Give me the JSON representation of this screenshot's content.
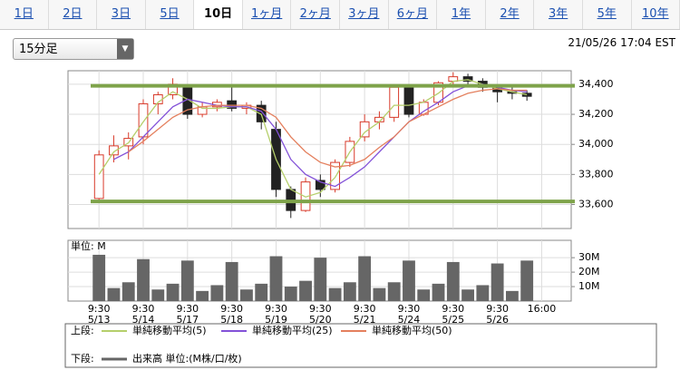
{
  "tabs": [
    "1日",
    "2日",
    "3日",
    "5日",
    "10日",
    "1ヶ月",
    "2ヶ月",
    "3ヶ月",
    "6ヶ月",
    "1年",
    "2年",
    "3年",
    "5年",
    "10年"
  ],
  "selected_tab": 4,
  "interval_select": "15分足",
  "timestamp": "21/05/26 17:04 EST",
  "chart_data": [
    {
      "type": "candlestick",
      "x": [
        0,
        1,
        2,
        3,
        4,
        5,
        6,
        7,
        8,
        9,
        10,
        11,
        12,
        13,
        14,
        15,
        16,
        17,
        18,
        19,
        20,
        21,
        22,
        23,
        24,
        25,
        26,
        27,
        28,
        29
      ],
      "open": [
        33640,
        33930,
        33990,
        34050,
        34270,
        34330,
        34380,
        34200,
        34250,
        34290,
        34240,
        34260,
        34100,
        33700,
        33560,
        33760,
        33700,
        33880,
        34050,
        34150,
        34180,
        34380,
        34200,
        34280,
        34420,
        34450,
        34420,
        34380,
        34350,
        34340
      ],
      "high": [
        33960,
        34060,
        34080,
        34300,
        34350,
        34440,
        34400,
        34280,
        34300,
        34400,
        34280,
        34290,
        34150,
        33720,
        33780,
        33800,
        33900,
        34050,
        34200,
        34220,
        34400,
        34400,
        34300,
        34420,
        34480,
        34470,
        34440,
        34400,
        34380,
        34360
      ],
      "low": [
        33610,
        33880,
        33900,
        34000,
        34200,
        34300,
        34170,
        34180,
        34220,
        34220,
        34200,
        34100,
        33650,
        33510,
        33550,
        33650,
        33680,
        33850,
        34020,
        34100,
        34150,
        34180,
        34190,
        34260,
        34380,
        34390,
        34350,
        34280,
        34300,
        34290
      ],
      "close": [
        33930,
        33990,
        34040,
        34270,
        34330,
        34400,
        34200,
        34250,
        34280,
        34240,
        34260,
        34150,
        33700,
        33560,
        33750,
        33700,
        33880,
        34020,
        34150,
        34180,
        34380,
        34200,
        34280,
        34410,
        34450,
        34420,
        34380,
        34350,
        34340,
        34320
      ],
      "up_color": "#d83a2a",
      "down_color": "#222222",
      "series": [
        {
          "name": "単純移動平均(5)",
          "color": "#b5cf6b",
          "values": [
            33800,
            33950,
            34010,
            34150,
            34280,
            34350,
            34300,
            34240,
            34240,
            34250,
            34250,
            34200,
            33900,
            33700,
            33650,
            33680,
            33780,
            33950,
            34080,
            34150,
            34260,
            34260,
            34280,
            34340,
            34420,
            34430,
            34400,
            34370,
            34350,
            34330
          ]
        },
        {
          "name": "単純移動平均(25)",
          "color": "#8352d8",
          "values": [
            null,
            33900,
            33950,
            34050,
            34150,
            34250,
            34300,
            34280,
            34260,
            34250,
            34250,
            34220,
            34100,
            33900,
            33800,
            33750,
            33720,
            33780,
            33850,
            33950,
            34050,
            34150,
            34220,
            34280,
            34350,
            34390,
            34400,
            34380,
            34360,
            34350
          ]
        },
        {
          "name": "単純移動平均(50)",
          "color": "#e4805e",
          "values": [
            null,
            null,
            33950,
            34020,
            34100,
            34180,
            34230,
            34250,
            34260,
            34260,
            34260,
            34240,
            34180,
            34050,
            33950,
            33880,
            33850,
            33860,
            33900,
            33980,
            34050,
            34150,
            34200,
            34250,
            34300,
            34340,
            34360,
            34370,
            34360,
            34360
          ]
        }
      ],
      "hlines": [
        {
          "value": 34390,
          "color": "#7ea34a"
        },
        {
          "value": 33620,
          "color": "#7ea34a"
        }
      ],
      "xlim": [
        -2.1,
        32
      ],
      "ylim": [
        33440,
        34490
      ],
      "yticks": [
        {
          "value": 33600,
          "label": "33,600"
        },
        {
          "value": 33800,
          "label": "33,800"
        },
        {
          "value": 34000,
          "label": "34,000"
        },
        {
          "value": 34200,
          "label": "34,200"
        },
        {
          "value": 34400,
          "label": "34,400"
        }
      ],
      "xticks": [
        {
          "value": 0,
          "label": "9:30\n5/13"
        },
        {
          "value": 3,
          "label": "9:30\n5/14"
        },
        {
          "value": 6,
          "label": "9:30\n5/17"
        },
        {
          "value": 9,
          "label": "9:30\n5/18"
        },
        {
          "value": 12,
          "label": "9:30\n5/19"
        },
        {
          "value": 15,
          "label": "9:30\n5/20"
        },
        {
          "value": 18,
          "label": "9:30\n5/21"
        },
        {
          "value": 21,
          "label": "9:30\n5/24"
        },
        {
          "value": 24,
          "label": "9:30\n5/25"
        },
        {
          "value": 27,
          "label": "9:30\n5/26"
        },
        {
          "value": 30,
          "label": "16:00"
        }
      ],
      "grid": true
    },
    {
      "type": "bar",
      "name": "出来高 単位:(M株/口/枚)",
      "unit_label": "単位: M",
      "color": "#666666",
      "x": [
        0,
        1,
        2,
        3,
        4,
        5,
        6,
        7,
        8,
        9,
        10,
        11,
        12,
        13,
        14,
        15,
        16,
        17,
        18,
        19,
        20,
        21,
        22,
        23,
        24,
        25,
        26,
        27,
        28,
        29
      ],
      "values": [
        32,
        9,
        13,
        29,
        8,
        12,
        28,
        7,
        11,
        27,
        8,
        12,
        31,
        10,
        14,
        30,
        9,
        13,
        31,
        9,
        13,
        28,
        8,
        12,
        27,
        8,
        11,
        26,
        7,
        28
      ],
      "xlim": [
        -2.1,
        32
      ],
      "ylim": [
        0,
        42
      ],
      "yticks": [
        {
          "value": 10,
          "label": "10M"
        },
        {
          "value": 20,
          "label": "20M"
        },
        {
          "value": 30,
          "label": "30M"
        }
      ],
      "grid": true
    }
  ],
  "legend": {
    "upper_label": "上段:",
    "lower_label": "下段:"
  }
}
